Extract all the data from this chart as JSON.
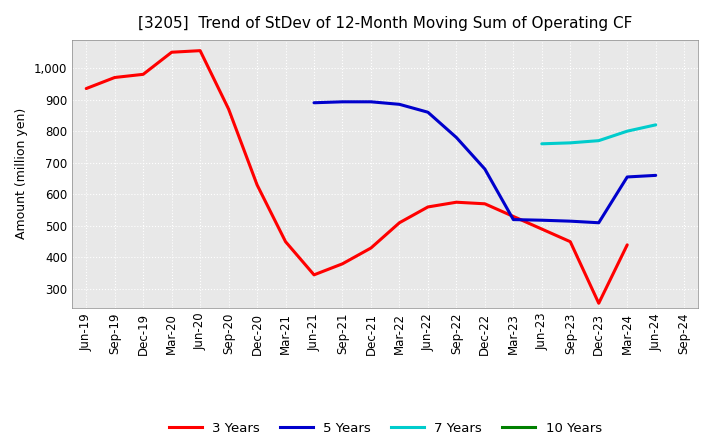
{
  "title": "[3205]  Trend of StDev of 12-Month Moving Sum of Operating CF",
  "ylabel": "Amount (million yen)",
  "background_color": "#ffffff",
  "plot_bg_color": "#e8e8e8",
  "grid_color": "#ffffff",
  "x_labels": [
    "Jun-19",
    "Sep-19",
    "Dec-19",
    "Mar-20",
    "Jun-20",
    "Sep-20",
    "Dec-20",
    "Mar-21",
    "Jun-21",
    "Sep-21",
    "Dec-21",
    "Mar-22",
    "Jun-22",
    "Sep-22",
    "Dec-22",
    "Mar-23",
    "Jun-23",
    "Sep-23",
    "Dec-23",
    "Mar-24",
    "Jun-24",
    "Sep-24"
  ],
  "series": {
    "3 Years": {
      "color": "#ff0000",
      "linewidth": 2.2,
      "x": [
        0,
        1,
        2,
        3,
        4,
        5,
        6,
        7,
        8,
        9,
        10,
        11,
        12,
        13,
        14,
        15,
        16,
        17,
        18,
        19
      ],
      "y": [
        935,
        970,
        980,
        1050,
        1055,
        870,
        630,
        450,
        345,
        380,
        430,
        510,
        560,
        575,
        570,
        530,
        490,
        450,
        255,
        440
      ]
    },
    "5 Years": {
      "color": "#0000cc",
      "linewidth": 2.2,
      "x": [
        8,
        9,
        10,
        11,
        12,
        13,
        14,
        15,
        16,
        17,
        18,
        19,
        20
      ],
      "y": [
        890,
        893,
        893,
        885,
        860,
        780,
        680,
        520,
        518,
        515,
        510,
        655,
        660
      ]
    },
    "7 Years": {
      "color": "#00cccc",
      "linewidth": 2.2,
      "x": [
        16,
        17,
        18,
        19,
        20
      ],
      "y": [
        760,
        763,
        770,
        800,
        820
      ]
    },
    "10 Years": {
      "color": "#008000",
      "linewidth": 2.2,
      "x": [],
      "y": []
    }
  },
  "ylim": [
    240,
    1090
  ],
  "yticks": [
    300,
    400,
    500,
    600,
    700,
    800,
    900,
    1000
  ],
  "title_fontsize": 11,
  "label_fontsize": 9,
  "tick_fontsize": 8.5,
  "legend_fontsize": 9.5
}
